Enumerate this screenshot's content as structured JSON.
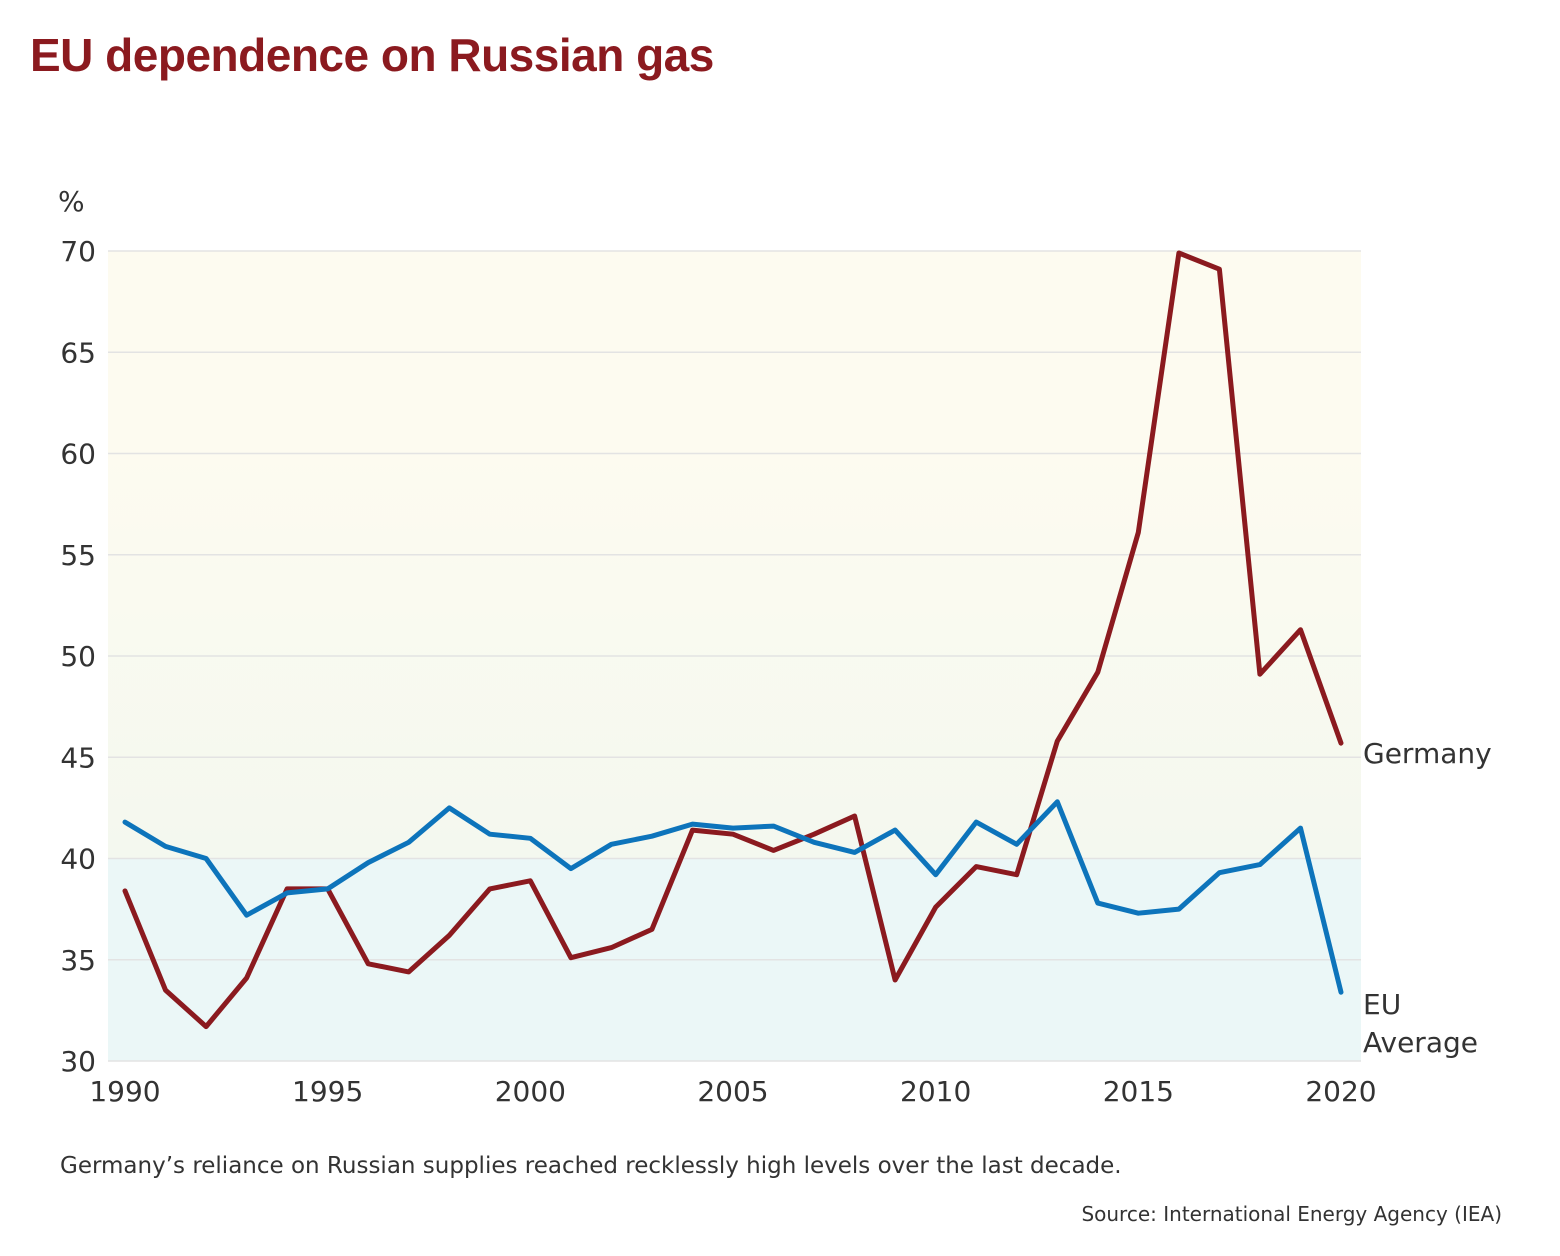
{
  "title": "EU dependence on Russian gas",
  "caption": "Germany’s reliance on Russian supplies reached recklessly high levels over the last decade.",
  "source": "Source: International Energy Agency (IEA)",
  "colors": {
    "title": "#8b1a1f",
    "germany": "#8b1a1f",
    "eu": "#0d74bb",
    "band_top": "#fdfbf0",
    "band_mid": "#f4f8ef",
    "band_low": "#ebf7f7",
    "grid": "#e3e3e3"
  },
  "chart_data": {
    "type": "line",
    "ylabel": "%",
    "ylim": [
      30,
      70
    ],
    "xlim": [
      1990,
      2020
    ],
    "yticks": [
      "30",
      "35",
      "40",
      "45",
      "50",
      "55",
      "60",
      "65",
      "70"
    ],
    "xticks": [
      "1990",
      "1995",
      "2000",
      "2005",
      "2010",
      "2015",
      "2020"
    ],
    "grid": true,
    "x": [
      1990,
      1991,
      1992,
      1993,
      1994,
      1995,
      1996,
      1997,
      1998,
      1999,
      2000,
      2001,
      2002,
      2003,
      2004,
      2005,
      2006,
      2007,
      2008,
      2009,
      2010,
      2011,
      2012,
      2013,
      2014,
      2015,
      2016,
      2017,
      2018,
      2019,
      2020
    ],
    "series": [
      {
        "name": "Germany",
        "color": "#8b1a1f",
        "values": [
          38.4,
          33.5,
          31.7,
          34.1,
          38.5,
          38.5,
          34.8,
          34.4,
          36.2,
          38.5,
          38.9,
          35.1,
          35.6,
          36.5,
          41.4,
          41.2,
          40.4,
          41.2,
          42.1,
          34.0,
          37.6,
          39.6,
          39.2,
          45.8,
          49.2,
          56.1,
          69.9,
          69.1,
          49.1,
          51.3,
          45.7
        ]
      },
      {
        "name": "EU\nAverage",
        "color": "#0d74bb",
        "values": [
          41.8,
          40.6,
          40.0,
          37.2,
          38.3,
          38.5,
          39.8,
          40.8,
          42.5,
          41.2,
          41.0,
          39.5,
          40.7,
          41.1,
          41.7,
          41.5,
          41.6,
          40.8,
          40.3,
          41.4,
          39.2,
          41.8,
          40.7,
          42.8,
          37.8,
          37.3,
          37.5,
          39.3,
          39.7,
          41.5,
          33.4
        ]
      }
    ]
  }
}
